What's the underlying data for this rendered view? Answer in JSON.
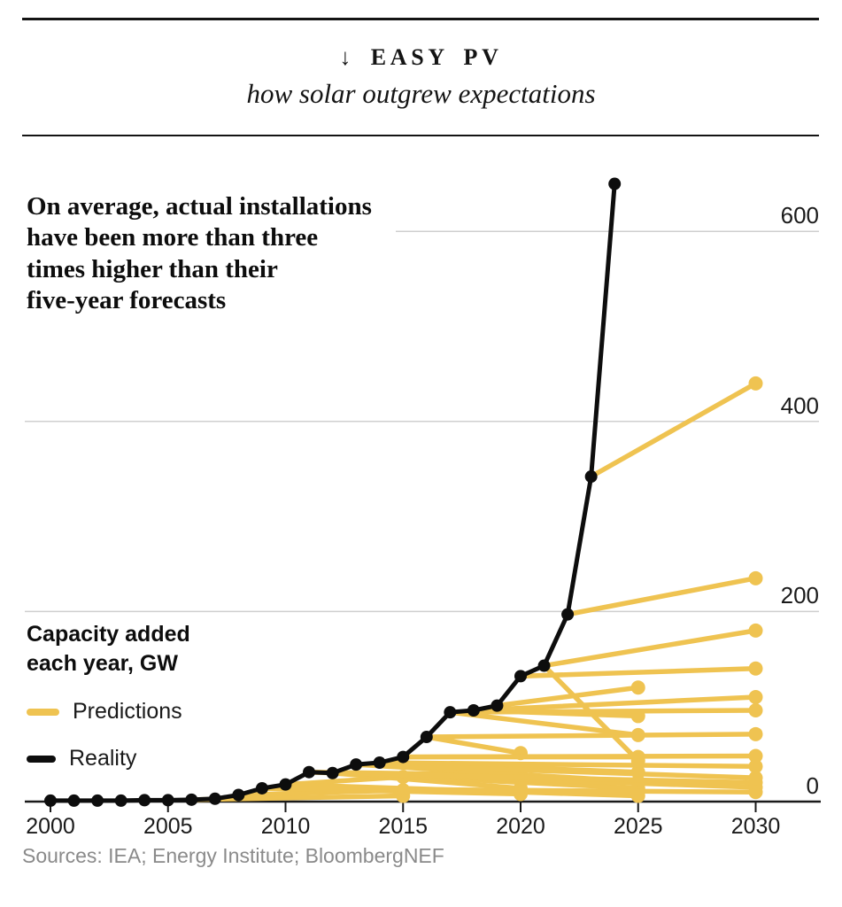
{
  "header": {
    "kicker": "↓ EASY PV",
    "subtitle": "how solar outgrew expectations"
  },
  "annotation": {
    "text": "On average, actual installations\nhave been more than three\ntimes higher than their\nfive-year forecasts"
  },
  "legend": {
    "title": "Capacity added\neach year, GW",
    "predictions_label": "Predictions",
    "reality_label": "Reality"
  },
  "footer": {
    "sources": "Sources: IEA; Energy Institute; BloombergNEF"
  },
  "colors": {
    "prediction": "#EFC351",
    "reality": "#0D0D0D",
    "grid": "#CFCFCF",
    "axis": "#1A1A1A",
    "text": "#111111",
    "muted": "#8A8A8A",
    "background": "#FFFFFF"
  },
  "chart_data": {
    "type": "line",
    "title": "Capacity added each year, GW",
    "xlabel": "",
    "ylabel": "Capacity added each year, GW",
    "xlim": [
      1999.5,
      2032.5
    ],
    "ylim": [
      0,
      670
    ],
    "grid": "horizontal",
    "y_axis_side": "right",
    "legend_position": "left",
    "xticks": [
      2000,
      2005,
      2010,
      2015,
      2020,
      2025,
      2030
    ],
    "yticks": [
      0,
      200,
      400,
      600
    ],
    "reality": {
      "name": "Reality",
      "x": [
        2000,
        2001,
        2002,
        2003,
        2004,
        2005,
        2006,
        2007,
        2008,
        2009,
        2010,
        2011,
        2012,
        2013,
        2014,
        2015,
        2016,
        2017,
        2018,
        2019,
        2020,
        2021,
        2022,
        2023,
        2024
      ],
      "values": [
        1,
        1,
        1,
        1,
        1.5,
        1.5,
        2,
        3,
        7,
        14,
        18,
        31,
        30,
        39,
        41,
        47,
        68,
        94,
        96,
        101,
        132,
        143,
        197,
        342,
        650
      ]
    },
    "predictions": [
      {
        "x": [
          2006,
          2015
        ],
        "values": [
          2,
          6
        ]
      },
      {
        "x": [
          2008,
          2015
        ],
        "values": [
          7,
          12
        ]
      },
      {
        "x": [
          2010,
          2015
        ],
        "values": [
          18,
          26
        ]
      },
      {
        "x": [
          2009,
          2020
        ],
        "values": [
          14,
          8
        ]
      },
      {
        "x": [
          2011,
          2020
        ],
        "values": [
          31,
          28
        ]
      },
      {
        "x": [
          2012,
          2020
        ],
        "values": [
          30,
          14
        ]
      },
      {
        "x": [
          2016,
          2020
        ],
        "values": [
          68,
          51
        ]
      },
      {
        "x": [
          2010,
          2025
        ],
        "values": [
          18,
          6
        ]
      },
      {
        "x": [
          2012,
          2025
        ],
        "values": [
          30,
          14
        ]
      },
      {
        "x": [
          2013,
          2025
        ],
        "values": [
          39,
          21
        ]
      },
      {
        "x": [
          2014,
          2025
        ],
        "values": [
          41,
          31
        ]
      },
      {
        "x": [
          2015,
          2025
        ],
        "values": [
          47,
          47
        ]
      },
      {
        "x": [
          2017,
          2025
        ],
        "values": [
          94,
          70
        ]
      },
      {
        "x": [
          2018,
          2025
        ],
        "values": [
          96,
          90
        ]
      },
      {
        "x": [
          2019,
          2025
        ],
        "values": [
          101,
          120
        ]
      },
      {
        "x": [
          2021,
          2025
        ],
        "values": [
          143,
          43
        ]
      },
      {
        "x": [
          2009,
          2030
        ],
        "values": [
          14,
          10
        ]
      },
      {
        "x": [
          2011,
          2030
        ],
        "values": [
          31,
          15
        ]
      },
      {
        "x": [
          2012,
          2030
        ],
        "values": [
          30,
          20
        ]
      },
      {
        "x": [
          2013,
          2030
        ],
        "values": [
          39,
          25
        ]
      },
      {
        "x": [
          2014,
          2030
        ],
        "values": [
          41,
          37
        ]
      },
      {
        "x": [
          2015,
          2030
        ],
        "values": [
          47,
          48
        ]
      },
      {
        "x": [
          2016,
          2030
        ],
        "values": [
          68,
          71
        ]
      },
      {
        "x": [
          2017,
          2030
        ],
        "values": [
          94,
          96
        ]
      },
      {
        "x": [
          2018,
          2030
        ],
        "values": [
          96,
          110
        ]
      },
      {
        "x": [
          2020,
          2030
        ],
        "values": [
          132,
          140
        ]
      },
      {
        "x": [
          2021,
          2030
        ],
        "values": [
          143,
          180
        ]
      },
      {
        "x": [
          2022,
          2030
        ],
        "values": [
          197,
          235
        ]
      },
      {
        "x": [
          2023,
          2030
        ],
        "values": [
          342,
          440
        ]
      }
    ]
  }
}
